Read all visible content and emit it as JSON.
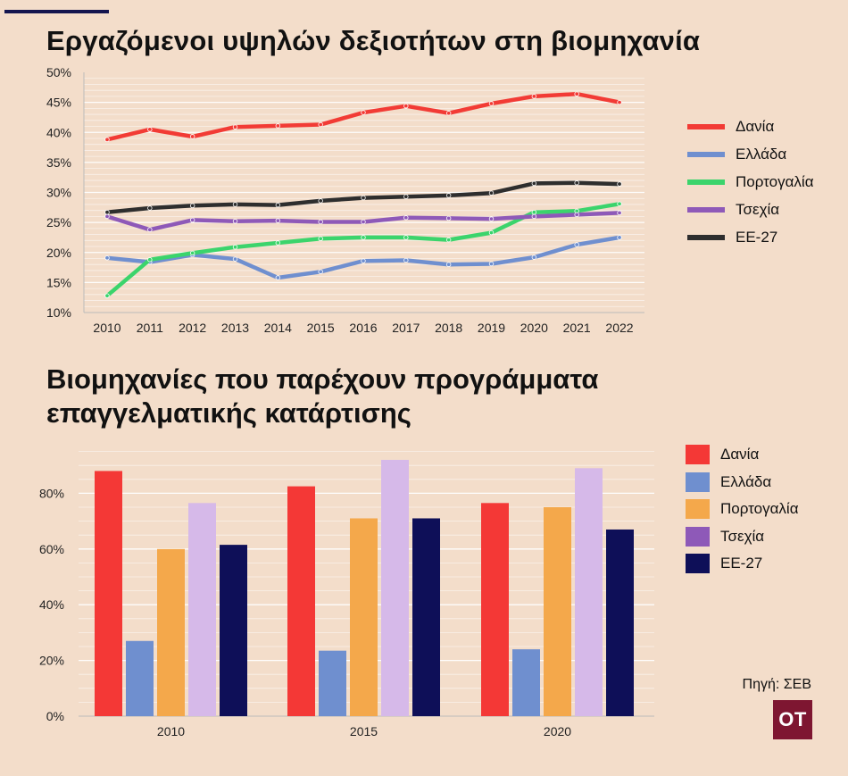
{
  "charts": [
    {
      "title": "Εργαζόμενοι υψηλών δεξιοτήτων στη βιομηχανία",
      "chart_data": {
        "type": "line",
        "x": [
          "2010",
          "2011",
          "2012",
          "2013",
          "2014",
          "2015",
          "2016",
          "2017",
          "2018",
          "2019",
          "2020",
          "2021",
          "2022"
        ],
        "ylim": [
          10,
          50
        ],
        "yticks": [
          10,
          15,
          20,
          25,
          30,
          35,
          40,
          45,
          50
        ],
        "ytick_labels": [
          "10%",
          "15%",
          "20%",
          "25%",
          "30%",
          "35%",
          "40%",
          "45%",
          "50%"
        ],
        "grid": true,
        "legend": "right",
        "series": [
          {
            "name": "Δανία",
            "color": "#f23b35",
            "values": [
              38.8,
              40.5,
              39.3,
              40.9,
              41.1,
              41.3,
              43.3,
              44.4,
              43.2,
              44.8,
              46.0,
              46.4,
              45.0
            ]
          },
          {
            "name": "Ελλάδα",
            "color": "#6f8fcf",
            "values": [
              19.1,
              18.4,
              19.6,
              18.9,
              15.8,
              16.8,
              18.6,
              18.7,
              18.0,
              18.1,
              19.2,
              21.3,
              22.5
            ]
          },
          {
            "name": "Πορτογαλία",
            "color": "#3bd46c",
            "values": [
              12.8,
              18.8,
              19.9,
              20.9,
              21.6,
              22.3,
              22.5,
              22.5,
              22.1,
              23.3,
              26.7,
              26.9,
              28.1
            ]
          },
          {
            "name": "Τσεχία",
            "color": "#8e59b8",
            "values": [
              26.0,
              23.8,
              25.4,
              25.2,
              25.3,
              25.1,
              25.1,
              25.8,
              25.7,
              25.6,
              26.0,
              26.3,
              26.6
            ]
          },
          {
            "name": "ΕΕ-27",
            "color": "#2e2e2e",
            "values": [
              26.7,
              27.4,
              27.8,
              28.0,
              27.9,
              28.6,
              29.1,
              29.3,
              29.5,
              29.9,
              31.5,
              31.6,
              31.4
            ]
          }
        ]
      }
    },
    {
      "title": "Βιομηχανίες που παρέχουν προγράμματα επαγγελματικής κατάρτισης",
      "chart_data": {
        "type": "bar",
        "categories": [
          "2010",
          "2015",
          "2020"
        ],
        "ylim": [
          0,
          100
        ],
        "yticks": [
          0,
          20,
          40,
          60,
          80
        ],
        "ytick_labels": [
          "0%",
          "20%",
          "40%",
          "60%",
          "80%"
        ],
        "grid": true,
        "legend": "right",
        "series": [
          {
            "name": "Δανία",
            "color": "#f43836",
            "values": [
              88,
              82.5,
              76.5
            ]
          },
          {
            "name": "Ελλάδα",
            "color": "#6f8fcf",
            "values": [
              27,
              23.5,
              24
            ]
          },
          {
            "name": "Πορτογαλία",
            "color": "#f4a84b",
            "values": [
              60,
              71,
              75
            ]
          },
          {
            "name": "Τσεχία",
            "color": "#d6b9e9",
            "values": [
              76.5,
              92,
              89
            ]
          },
          {
            "name": "ΕΕ-27",
            "color": "#0e0f58",
            "values": [
              61.5,
              71,
              67
            ]
          }
        ]
      }
    }
  ],
  "legend2_colors": [
    "#f43836",
    "#6f8fcf",
    "#f4a84b",
    "#8e59b8",
    "#0e0f58"
  ],
  "source": "Πηγή: ΣΕΒ",
  "logo": "OT",
  "colors": {
    "background": "#f3ddca",
    "accent": "#14154f",
    "logo_bg": "#7e1631"
  }
}
